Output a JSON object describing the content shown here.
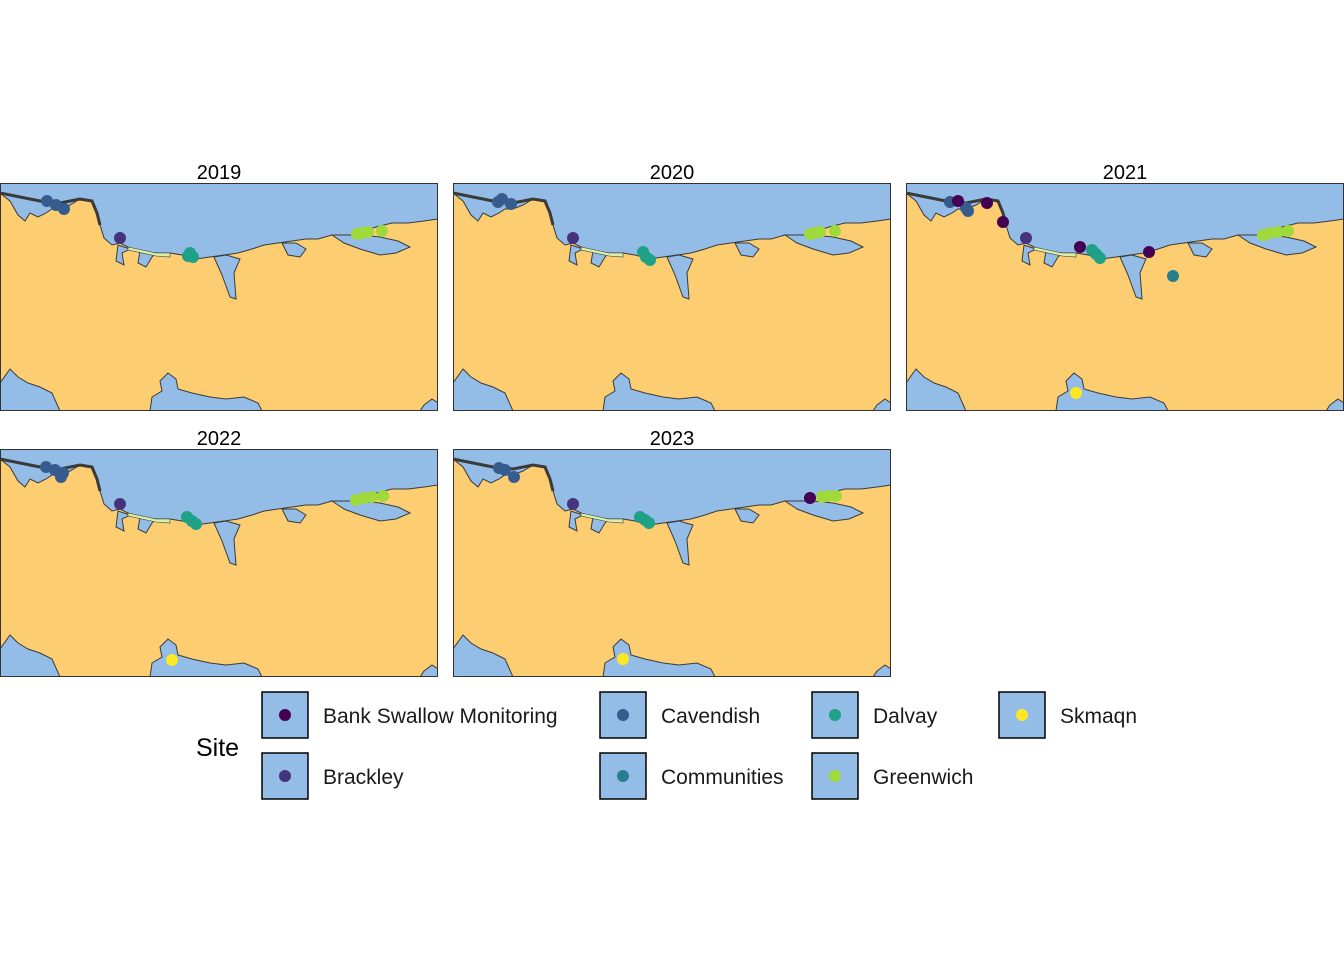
{
  "figure": {
    "type": "faceted-map",
    "colors": {
      "land": "#FDCD72",
      "water": "#93BCE6",
      "coast": "#3a3a3a",
      "marsh": "#D9F0A8"
    }
  },
  "legend": {
    "title": "Site",
    "items": [
      {
        "label": "Bank Swallow Monitoring",
        "color": "#440154"
      },
      {
        "label": "Brackley",
        "color": "#46337E"
      },
      {
        "label": "Cavendish",
        "color": "#365C8D"
      },
      {
        "label": "Communities",
        "color": "#277F8E"
      },
      {
        "label": "Dalvay",
        "color": "#1FA187"
      },
      {
        "label": "Greenwich",
        "color": "#9FDA3A"
      },
      {
        "label": "Skmaqn",
        "color": "#FDE725"
      }
    ]
  },
  "panels": [
    {
      "year": "2019",
      "sites": [
        {
          "site": "Cavendish",
          "points": [
            [
              47,
              201
            ],
            [
              56,
              205
            ],
            [
              64,
              209
            ]
          ]
        },
        {
          "site": "Brackley",
          "points": [
            [
              120,
              238
            ]
          ]
        },
        {
          "site": "Dalvay",
          "points": [
            [
              190,
              253
            ],
            [
              193,
              257
            ],
            [
              188,
              256
            ]
          ]
        },
        {
          "site": "Greenwich",
          "points": [
            [
              357,
              234
            ],
            [
              362,
              233
            ],
            [
              368,
              232
            ],
            [
              382,
              231
            ]
          ]
        }
      ]
    },
    {
      "year": "2020",
      "sites": [
        {
          "site": "Cavendish",
          "points": [
            [
              498,
              202
            ],
            [
              502,
              199
            ],
            [
              511,
              204
            ]
          ]
        },
        {
          "site": "Brackley",
          "points": [
            [
              573,
              238
            ]
          ]
        },
        {
          "site": "Dalvay",
          "points": [
            [
              643,
              252
            ],
            [
              646,
              257
            ],
            [
              650,
              260
            ]
          ]
        },
        {
          "site": "Greenwich",
          "points": [
            [
              810,
              234
            ],
            [
              815,
              233
            ],
            [
              820,
              232
            ],
            [
              835,
              231
            ]
          ]
        }
      ]
    },
    {
      "year": "2021",
      "sites": [
        {
          "site": "Cavendish",
          "points": [
            [
              950,
              202
            ],
            [
              966,
              208
            ],
            [
              968,
              211
            ]
          ]
        },
        {
          "site": "Bank Swallow Monitoring",
          "points": [
            [
              958,
              201
            ],
            [
              987,
              203
            ],
            [
              1003,
              222
            ],
            [
              1080,
              247
            ],
            [
              1149,
              252
            ]
          ]
        },
        {
          "site": "Brackley",
          "points": [
            [
              1026,
              238
            ]
          ]
        },
        {
          "site": "Dalvay",
          "points": [
            [
              1092,
              250
            ],
            [
              1096,
              254
            ],
            [
              1100,
              258
            ]
          ]
        },
        {
          "site": "Communities",
          "points": [
            [
              1173,
              276
            ]
          ]
        },
        {
          "site": "Greenwich",
          "points": [
            [
              1263,
              235
            ],
            [
              1270,
              233
            ],
            [
              1278,
              232
            ],
            [
              1288,
              231
            ]
          ]
        },
        {
          "site": "Skmaqn",
          "points": [
            [
              1076,
              393
            ]
          ]
        }
      ]
    },
    {
      "year": "2022",
      "sites": [
        {
          "site": "Cavendish",
          "points": [
            [
              46,
              467
            ],
            [
              55,
              470
            ],
            [
              61,
              477
            ],
            [
              63,
              473
            ]
          ]
        },
        {
          "site": "Brackley",
          "points": [
            [
              120,
              504
            ]
          ]
        },
        {
          "site": "Dalvay",
          "points": [
            [
              187,
              517
            ],
            [
              192,
              521
            ],
            [
              196,
              524
            ]
          ]
        },
        {
          "site": "Greenwich",
          "points": [
            [
              356,
              500
            ],
            [
              364,
              498
            ],
            [
              372,
              497
            ],
            [
              383,
              496
            ]
          ]
        },
        {
          "site": "Skmaqn",
          "points": [
            [
              172,
              660
            ]
          ]
        }
      ]
    },
    {
      "year": "2023",
      "sites": [
        {
          "site": "Cavendish",
          "points": [
            [
              499,
              468
            ],
            [
              505,
              470
            ],
            [
              514,
              477
            ]
          ]
        },
        {
          "site": "Brackley",
          "points": [
            [
              573,
              504
            ]
          ]
        },
        {
          "site": "Dalvay",
          "points": [
            [
              640,
              517
            ],
            [
              645,
              520
            ],
            [
              649,
              523
            ]
          ]
        },
        {
          "site": "Greenwich",
          "points": [
            [
              822,
              497
            ],
            [
              828,
              496
            ],
            [
              836,
              496
            ]
          ]
        },
        {
          "site": "Bank Swallow Monitoring",
          "points": [
            [
              810,
              498
            ]
          ]
        },
        {
          "site": "Skmaqn",
          "points": [
            [
              623,
              659
            ]
          ]
        }
      ]
    }
  ]
}
